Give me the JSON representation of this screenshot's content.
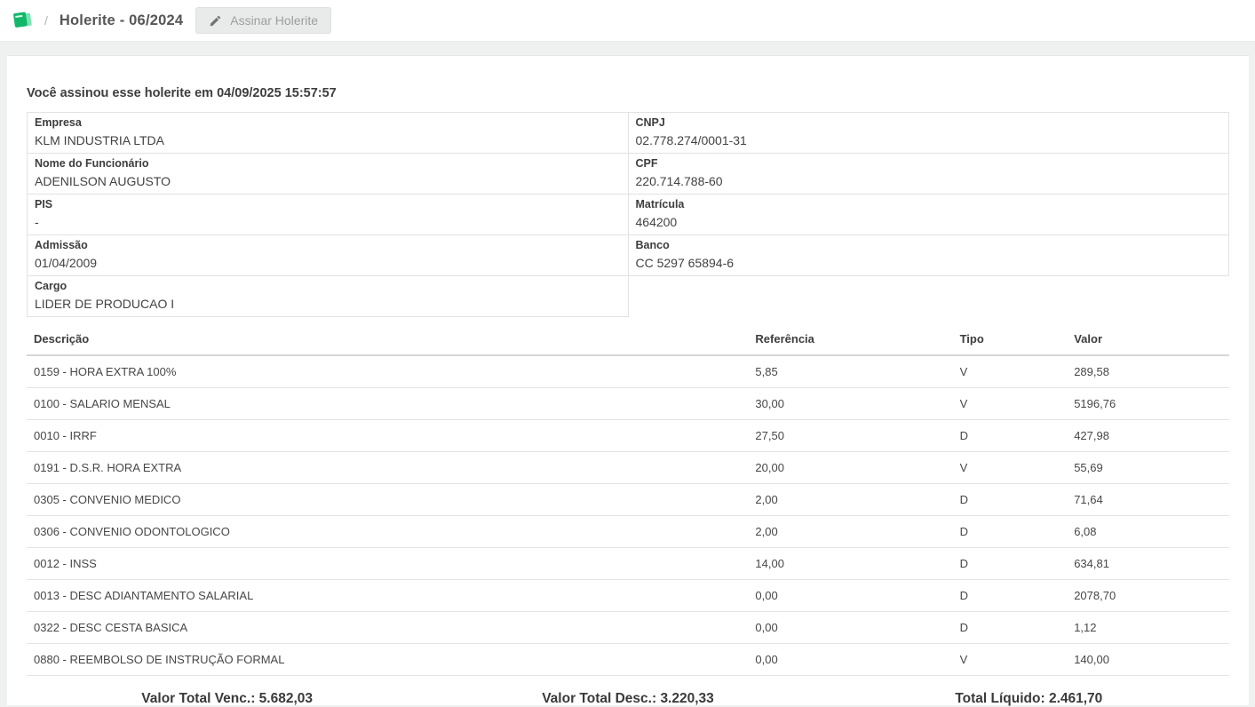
{
  "breadcrumb": {
    "icon": "book-icon",
    "separator": "/",
    "title": "Holerite - 06/2024"
  },
  "toolbar": {
    "sign_button_label": "Assinar Holerite"
  },
  "signed_message": "Você assinou esse holerite em 04/09/2025 15:57:57",
  "employee_info": {
    "rows": [
      {
        "left": {
          "label": "Empresa",
          "value": "KLM INDUSTRIA LTDA"
        },
        "right": {
          "label": "CNPJ",
          "value": "02.778.274/0001-31"
        }
      },
      {
        "left": {
          "label": "Nome do Funcionário",
          "value": "ADENILSON AUGUSTO"
        },
        "right": {
          "label": "CPF",
          "value": "220.714.788-60"
        }
      },
      {
        "left": {
          "label": "PIS",
          "value": "-"
        },
        "right": {
          "label": "Matrícula",
          "value": "464200"
        }
      },
      {
        "left": {
          "label": "Admissão",
          "value": "01/04/2009"
        },
        "right": {
          "label": "Banco",
          "value": "CC 5297 65894-6"
        }
      },
      {
        "left": {
          "label": "Cargo",
          "value": "LIDER DE PRODUCAO I"
        },
        "right": null
      }
    ]
  },
  "payroll_table": {
    "headers": [
      "Descrição",
      "Referência",
      "Tipo",
      "Valor"
    ],
    "rows": [
      [
        "0159 - HORA EXTRA 100%",
        "5,85",
        "V",
        "289,58"
      ],
      [
        "0100 - SALARIO MENSAL",
        "30,00",
        "V",
        "5196,76"
      ],
      [
        "0010 - IRRF",
        "27,50",
        "D",
        "427,98"
      ],
      [
        "0191 - D.S.R. HORA EXTRA",
        "20,00",
        "V",
        "55,69"
      ],
      [
        "0305 - CONVENIO MEDICO",
        "2,00",
        "D",
        "71,64"
      ],
      [
        "0306 - CONVENIO ODONTOLOGICO",
        "2,00",
        "D",
        "6,08"
      ],
      [
        "0012 - INSS",
        "14,00",
        "D",
        "634,81"
      ],
      [
        "0013 - DESC ADIANTAMENTO SALARIAL",
        "0,00",
        "D",
        "2078,70"
      ],
      [
        "0322 - DESC CESTA BASICA",
        "0,00",
        "D",
        "1,12"
      ],
      [
        "0880 - REEMBOLSO DE INSTRUÇÃO FORMAL",
        "0,00",
        "V",
        "140,00"
      ]
    ]
  },
  "totals": {
    "venc_label": "Valor Total Venc.:",
    "venc_value": "5.682,03",
    "desc_label": "Valor Total Desc.:",
    "desc_value": "3.220,33",
    "liquido_label": "Total Líquido:",
    "liquido_value": "2.461,70"
  },
  "colors": {
    "accent_green": "#12b76a",
    "disabled_button_bg": "#e9eaea",
    "disabled_button_text": "#9e9e9e",
    "border_light": "#e2e2e2"
  }
}
